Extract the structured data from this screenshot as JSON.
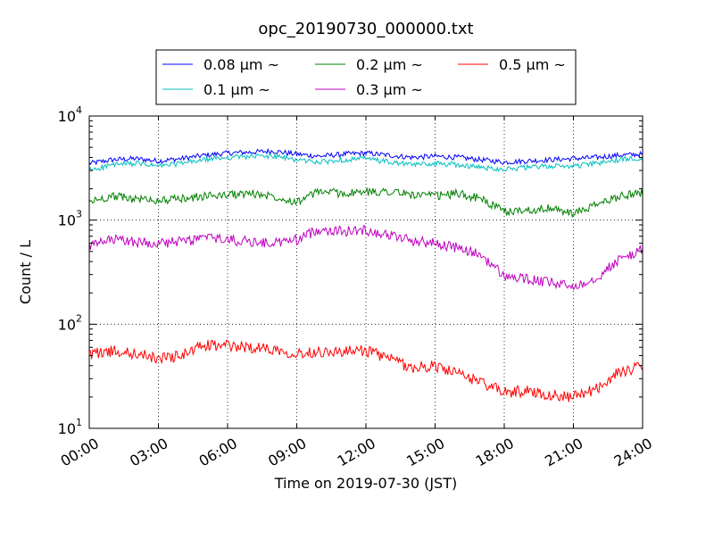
{
  "chart_data": {
    "type": "line",
    "title": "opc_20190730_000000.txt",
    "xlabel": "Time on 2019-07-30 (JST)",
    "ylabel": "Count / L",
    "yscale": "log",
    "ylim": [
      10,
      10000
    ],
    "xlim": [
      "00:00",
      "24:00"
    ],
    "x_ticks": [
      "00:00",
      "03:00",
      "06:00",
      "09:00",
      "12:00",
      "15:00",
      "18:00",
      "21:00",
      "24:00"
    ],
    "y_ticks": [
      {
        "base": "10",
        "exp": "1"
      },
      {
        "base": "10",
        "exp": "2"
      },
      {
        "base": "10",
        "exp": "3"
      },
      {
        "base": "10",
        "exp": "4"
      }
    ],
    "grid": true,
    "legend_position": "top-center",
    "x": [
      "00:00",
      "01:00",
      "02:00",
      "03:00",
      "04:00",
      "05:00",
      "06:00",
      "07:00",
      "08:00",
      "09:00",
      "10:00",
      "11:00",
      "12:00",
      "13:00",
      "14:00",
      "15:00",
      "16:00",
      "17:00",
      "18:00",
      "19:00",
      "20:00",
      "21:00",
      "22:00",
      "23:00",
      "24:00"
    ],
    "series": [
      {
        "name": "0.08 μm ~",
        "color": "#0000ff",
        "values": [
          3500,
          3800,
          3900,
          3700,
          3900,
          4200,
          4400,
          4500,
          4600,
          4300,
          4100,
          4300,
          4400,
          4200,
          4000,
          4100,
          4000,
          3800,
          3600,
          3700,
          3800,
          3900,
          4000,
          4200,
          4300
        ]
      },
      {
        "name": "0.1 μm ~",
        "color": "#00bfbf",
        "values": [
          3000,
          3400,
          3500,
          3300,
          3500,
          3800,
          4000,
          4100,
          4100,
          3800,
          3600,
          3800,
          3900,
          3600,
          3400,
          3500,
          3400,
          3200,
          3100,
          3200,
          3300,
          3300,
          3500,
          3800,
          4000
        ]
      },
      {
        "name": "0.2 μm ~",
        "color": "#008000",
        "values": [
          1500,
          1700,
          1600,
          1550,
          1600,
          1700,
          1750,
          1800,
          1700,
          1500,
          1900,
          1800,
          1850,
          1900,
          1750,
          1700,
          1800,
          1600,
          1200,
          1250,
          1300,
          1150,
          1400,
          1700,
          1850
        ]
      },
      {
        "name": "0.3 μm ~",
        "color": "#bf00bf",
        "values": [
          560,
          650,
          620,
          600,
          620,
          680,
          650,
          620,
          600,
          650,
          820,
          780,
          800,
          720,
          640,
          600,
          540,
          460,
          290,
          270,
          250,
          230,
          280,
          420,
          520
        ]
      },
      {
        "name": "0.5 μm ~",
        "color": "#ff0000",
        "values": [
          52,
          55,
          52,
          47,
          50,
          63,
          62,
          60,
          58,
          52,
          55,
          54,
          56,
          47,
          38,
          40,
          33,
          28,
          22,
          23,
          21,
          20,
          24,
          35,
          39
        ]
      }
    ]
  }
}
